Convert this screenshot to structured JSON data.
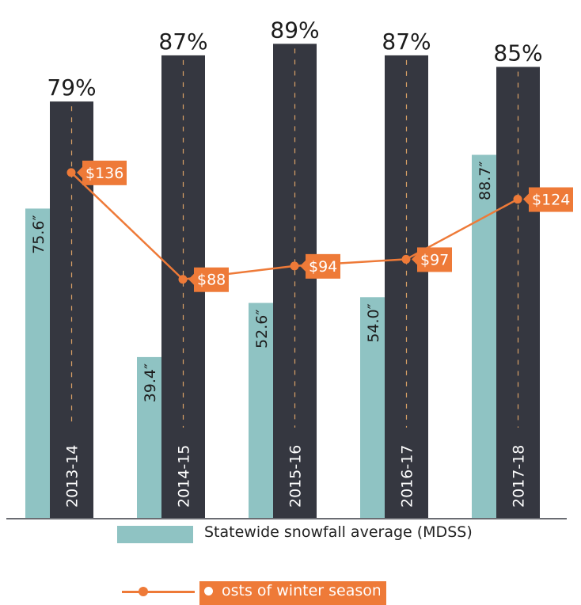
{
  "chart_data": {
    "type": "bar",
    "categories": [
      "2013-14",
      "2014-15",
      "2015-16",
      "2016-17",
      "2017-18"
    ],
    "series": [
      {
        "name": "Statewide snowfall average (MDSS)",
        "kind": "bar",
        "values": [
          75.6,
          39.4,
          52.6,
          54.0,
          88.7
        ],
        "labels": [
          "75.6″",
          "39.4″",
          "52.6″",
          "54.0″",
          "88.7″"
        ],
        "color": "#8fc3c3"
      },
      {
        "name": "",
        "kind": "bar",
        "values": [
          79,
          87,
          89,
          87,
          85
        ],
        "labels": [
          "79%",
          "87%",
          "89%",
          "87%",
          "85%"
        ],
        "color": "#353740"
      },
      {
        "name": "osts of winter season",
        "kind": "line",
        "values": [
          136,
          88,
          94,
          97,
          124
        ],
        "labels": [
          "$136",
          "$88",
          "$94",
          "$97",
          "$124"
        ],
        "color": "#ee7a38"
      }
    ],
    "legend_position": "bottom",
    "grid": false
  },
  "legend": {
    "snow_label": "Statewide snowfall average (MDSS)",
    "cost_label": "osts of winter season"
  }
}
